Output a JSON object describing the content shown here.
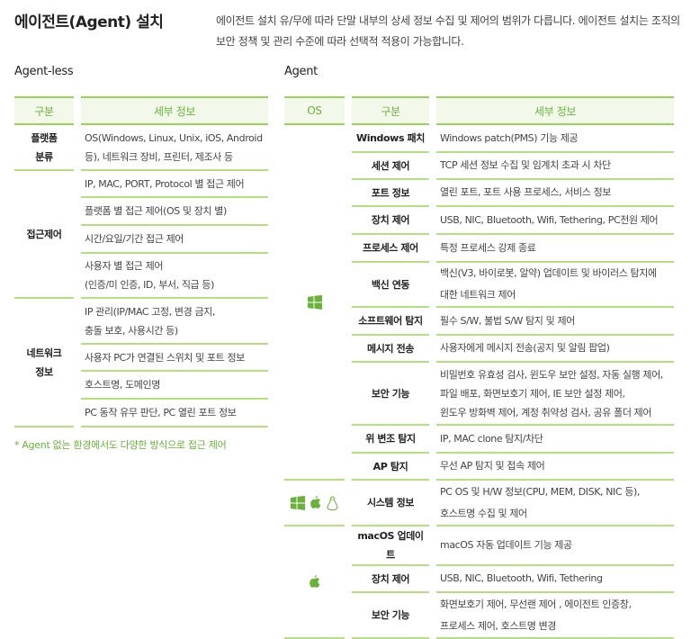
{
  "header": {
    "title": "에이전트(Agent) 설치",
    "description": "에이전트 설치 유/무에 따라 단말 내부의 상세 정보 수집 및 제어의 범위가 다릅니다. 에이전트 설치는 조직의 보안 정책 및 관리 수준에 따라 선택적 적용이 가능합니다."
  },
  "colors": {
    "accent": "#6ab23a",
    "line": "#9bd35a",
    "header_bg": "#f3f9ea"
  },
  "agentless": {
    "title": "Agent-less",
    "headers": [
      "구분",
      "세부 정보"
    ],
    "groups": [
      {
        "category": "플랫폼\n분류",
        "items": [
          "OS(Windows, Linux, Unix, iOS, Android 등), 네트워크 장비, 프린터, 제조사 등"
        ]
      },
      {
        "category": "접근제어",
        "items": [
          "IP, MAC, PORT, Protocol 별 접근 제어",
          "플랫폼 별 접근 제어(OS 및 장치 별)",
          "시간/요일/기간 접근 제어",
          "사용자 별 접근 제어\n(인증/미 인증, ID, 부서, 직급 등)"
        ]
      },
      {
        "category": "네트워크\n정보",
        "items": [
          "IP 관리(IP/MAC 고정, 변경 금지,\n충돌 보호, 사용시간 등)",
          "사용자 PC가 연결된 스위치 및 포트 정보",
          "호스트명, 도메인명",
          "PC 동작 유무 판단, PC 열린 포트 정보"
        ]
      }
    ],
    "note": "* Agent 없는 환경에서도 다양한 방식으로 접근 제어"
  },
  "agent": {
    "title": "Agent",
    "headers": [
      "OS",
      "구분",
      "세부 정보"
    ],
    "groups": [
      {
        "os_icons": [
          "windows-icon"
        ],
        "rows": [
          [
            "Windows 패치",
            "Windows patch(PMS) 기능 제공"
          ],
          [
            "세션 제어",
            "TCP 세션 정보 수집 및 임계치 초과 시 차단"
          ],
          [
            "포트 정보",
            "열린 포트, 포트 사용 프로세스, 서비스 정보"
          ],
          [
            "장치 제어",
            "USB, NIC, Bluetooth, Wifi, Tethering, PC전원 제어"
          ],
          [
            "프로세스 제어",
            "특정 프로세스 강제 종료"
          ],
          [
            "백신 연동",
            "백신(V3, 바이로봇, 알약) 업데이트 및 바이러스 탐지에\n대한 네트워크 제어"
          ],
          [
            "소프트웨어 탐지",
            "필수 S/W, 불법 S/W 탐지 및 제어"
          ],
          [
            "메시지 전송",
            "사용자에게 메시지 전송(공지 및 알림 팝업)"
          ],
          [
            "보안 기능",
            "비밀번호 유효성 검사, 윈도우 보안 설정, 자동 실행 제어,\n파일 배포, 화면보호기 제어, IE 보안 설정 제어,\n윈도우 방화벽 제어, 계정 취약성 검사, 공유 폴더 제어"
          ],
          [
            "위 변조 탐지",
            "IP, MAC clone 탐지/차단"
          ],
          [
            "AP 탐지",
            "무선 AP 탐지 및 접속 제어"
          ]
        ]
      },
      {
        "os_icons": [
          "windows-icon",
          "apple-icon",
          "linux-icon"
        ],
        "rows": [
          [
            "시스템 정보",
            "PC OS 및 H/W 정보(CPU, MEM, DISK, NIC 등),\n호스트명 수집 및 제어"
          ]
        ]
      },
      {
        "os_icons": [
          "apple-icon"
        ],
        "rows": [
          [
            "macOS 업데이트",
            "macOS 자동 업데이트 기능 제공"
          ],
          [
            "장치 제어",
            "USB, NIC, Bluetooth, Wifi, Tethering"
          ],
          [
            "보안 기능",
            "화면보호기 제어, 무선랜 제어 , 에이전트 인증창,\n프로세스 제어, 호스트명 변경"
          ]
        ]
      }
    ]
  }
}
